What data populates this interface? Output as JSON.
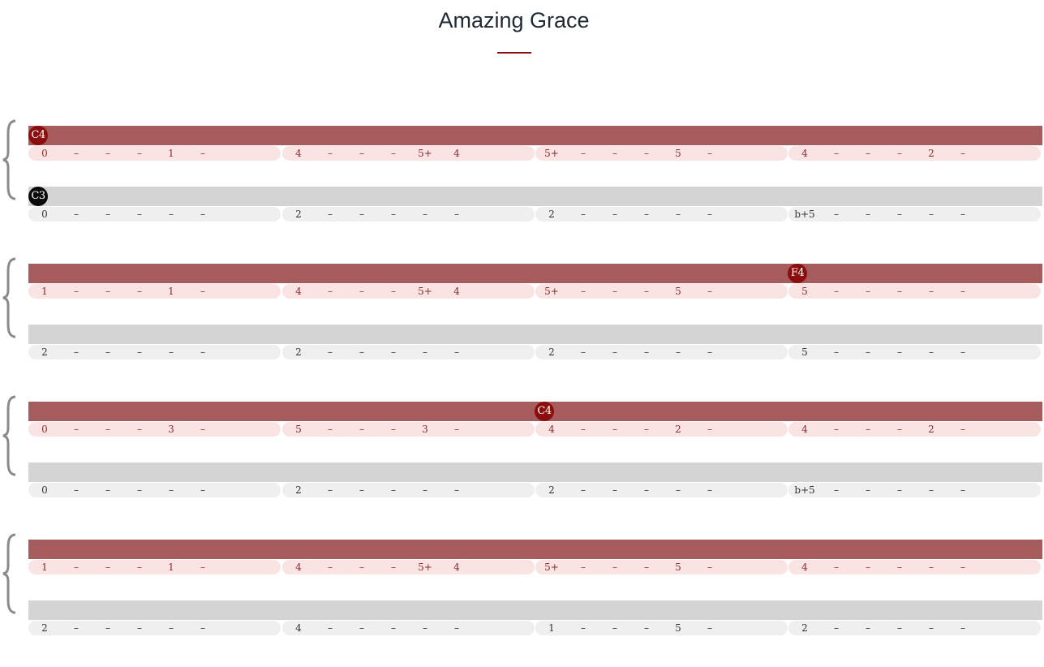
{
  "title": "Amazing Grace",
  "colors": {
    "title_rule": "#8b0f0f",
    "upper_bar": "#a65c5c",
    "upper_measure_bg": "#f9e3e3",
    "upper_text": "#8b2a2a",
    "upper_marker": "#8b0d0d",
    "lower_bar": "#d4d4d4",
    "lower_measure_bg": "#efefef",
    "lower_text": "#333333",
    "lower_marker": "#0b0b0b",
    "brace": "#8a8a8a"
  },
  "systems": [
    {
      "upper": {
        "markers": [
          {
            "label": "C4",
            "measure": 0
          }
        ],
        "measures": [
          [
            "0",
            "–",
            "–",
            "–",
            "1",
            "–"
          ],
          [
            "4",
            "–",
            "–",
            "–",
            "5+",
            "4"
          ],
          [
            "5+",
            "–",
            "–",
            "–",
            "5",
            "–"
          ],
          [
            "4",
            "–",
            "–",
            "–",
            "2",
            "–"
          ]
        ]
      },
      "lower": {
        "markers": [
          {
            "label": "C3",
            "measure": 0
          }
        ],
        "measures": [
          [
            "0",
            "–",
            "–",
            "–",
            "–",
            "–"
          ],
          [
            "2",
            "–",
            "–",
            "–",
            "–",
            "–"
          ],
          [
            "2",
            "–",
            "–",
            "–",
            "–",
            "–"
          ],
          [
            "b+5",
            "–",
            "–",
            "–",
            "–",
            "–"
          ]
        ]
      }
    },
    {
      "upper": {
        "markers": [
          {
            "label": "F4",
            "measure": 3
          }
        ],
        "measures": [
          [
            "1",
            "–",
            "–",
            "–",
            "1",
            "–"
          ],
          [
            "4",
            "–",
            "–",
            "–",
            "5+",
            "4"
          ],
          [
            "5+",
            "–",
            "–",
            "–",
            "5",
            "–"
          ],
          [
            "5",
            "–",
            "–",
            "–",
            "–",
            "–"
          ]
        ]
      },
      "lower": {
        "markers": [],
        "measures": [
          [
            "2",
            "–",
            "–",
            "–",
            "–",
            "–"
          ],
          [
            "2",
            "–",
            "–",
            "–",
            "–",
            "–"
          ],
          [
            "2",
            "–",
            "–",
            "–",
            "–",
            "–"
          ],
          [
            "5",
            "–",
            "–",
            "–",
            "–",
            "–"
          ]
        ]
      }
    },
    {
      "upper": {
        "markers": [
          {
            "label": "C4",
            "measure": 2
          }
        ],
        "measures": [
          [
            "0",
            "–",
            "–",
            "–",
            "3",
            "–"
          ],
          [
            "5",
            "–",
            "–",
            "–",
            "3",
            "–"
          ],
          [
            "4",
            "–",
            "–",
            "–",
            "2",
            "–"
          ],
          [
            "4",
            "–",
            "–",
            "–",
            "2",
            "–"
          ]
        ]
      },
      "lower": {
        "markers": [],
        "measures": [
          [
            "0",
            "–",
            "–",
            "–",
            "–",
            "–"
          ],
          [
            "2",
            "–",
            "–",
            "–",
            "–",
            "–"
          ],
          [
            "2",
            "–",
            "–",
            "–",
            "–",
            "–"
          ],
          [
            "b+5",
            "–",
            "–",
            "–",
            "–",
            "–"
          ]
        ]
      }
    },
    {
      "upper": {
        "markers": [],
        "measures": [
          [
            "1",
            "–",
            "–",
            "–",
            "1",
            "–"
          ],
          [
            "4",
            "–",
            "–",
            "–",
            "5+",
            "4"
          ],
          [
            "5+",
            "–",
            "–",
            "–",
            "5",
            "–"
          ],
          [
            "4",
            "–",
            "–",
            "–",
            "–",
            "–"
          ]
        ]
      },
      "lower": {
        "markers": [],
        "measures": [
          [
            "2",
            "–",
            "–",
            "–",
            "–",
            "–"
          ],
          [
            "4",
            "–",
            "–",
            "–",
            "–",
            "–"
          ],
          [
            "1",
            "–",
            "–",
            "–",
            "5",
            "–"
          ],
          [
            "2",
            "–",
            "–",
            "–",
            "–",
            "–"
          ]
        ]
      }
    }
  ]
}
